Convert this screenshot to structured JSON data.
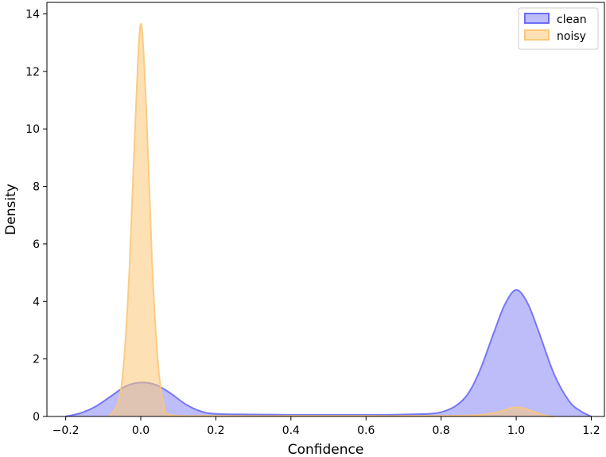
{
  "chart_data": {
    "type": "area",
    "title": "",
    "xlabel": "Confidence",
    "ylabel": "Density",
    "xlim": [
      -0.25,
      1.235
    ],
    "ylim": [
      0,
      14.4
    ],
    "xticks": [
      -0.2,
      0.0,
      0.2,
      0.4,
      0.6,
      0.8,
      1.0,
      1.2
    ],
    "xtick_labels": [
      "−0.2",
      "0.0",
      "0.2",
      "0.4",
      "0.6",
      "0.8",
      "1.0",
      "1.2"
    ],
    "yticks": [
      0,
      2,
      4,
      6,
      8,
      10,
      12,
      14
    ],
    "ytick_labels": [
      "0",
      "2",
      "4",
      "6",
      "8",
      "10",
      "12",
      "14"
    ],
    "grid": false,
    "legend_position": "top-right",
    "series": [
      {
        "name": "clean",
        "color": "#6c6cf5",
        "fill_opacity": 0.45,
        "points": [
          [
            -0.2,
            0.0
          ],
          [
            -0.16,
            0.12
          ],
          [
            -0.12,
            0.35
          ],
          [
            -0.08,
            0.7
          ],
          [
            -0.04,
            1.05
          ],
          [
            0.0,
            1.18
          ],
          [
            0.04,
            1.1
          ],
          [
            0.08,
            0.8
          ],
          [
            0.12,
            0.42
          ],
          [
            0.16,
            0.18
          ],
          [
            0.2,
            0.09
          ],
          [
            0.3,
            0.07
          ],
          [
            0.4,
            0.06
          ],
          [
            0.5,
            0.06
          ],
          [
            0.6,
            0.06
          ],
          [
            0.7,
            0.07
          ],
          [
            0.8,
            0.15
          ],
          [
            0.86,
            0.6
          ],
          [
            0.9,
            1.5
          ],
          [
            0.94,
            2.9
          ],
          [
            0.97,
            3.9
          ],
          [
            1.0,
            4.4
          ],
          [
            1.03,
            3.95
          ],
          [
            1.06,
            2.95
          ],
          [
            1.1,
            1.5
          ],
          [
            1.14,
            0.55
          ],
          [
            1.17,
            0.2
          ],
          [
            1.2,
            0.0
          ]
        ]
      },
      {
        "name": "noisy",
        "color": "#fbc878",
        "fill_opacity": 0.55,
        "points": [
          [
            -0.085,
            0.0
          ],
          [
            -0.06,
            0.5
          ],
          [
            -0.045,
            1.9
          ],
          [
            -0.03,
            5.2
          ],
          [
            -0.015,
            10.1
          ],
          [
            0.0,
            13.65
          ],
          [
            0.015,
            10.6
          ],
          [
            0.03,
            5.4
          ],
          [
            0.045,
            2.0
          ],
          [
            0.06,
            0.5
          ],
          [
            0.08,
            0.05
          ],
          [
            0.2,
            0.02
          ],
          [
            0.4,
            0.02
          ],
          [
            0.6,
            0.02
          ],
          [
            0.8,
            0.02
          ],
          [
            0.9,
            0.05
          ],
          [
            0.95,
            0.15
          ],
          [
            1.0,
            0.32
          ],
          [
            1.05,
            0.15
          ],
          [
            1.08,
            0.02
          ],
          [
            1.1,
            0.0
          ]
        ]
      }
    ]
  }
}
